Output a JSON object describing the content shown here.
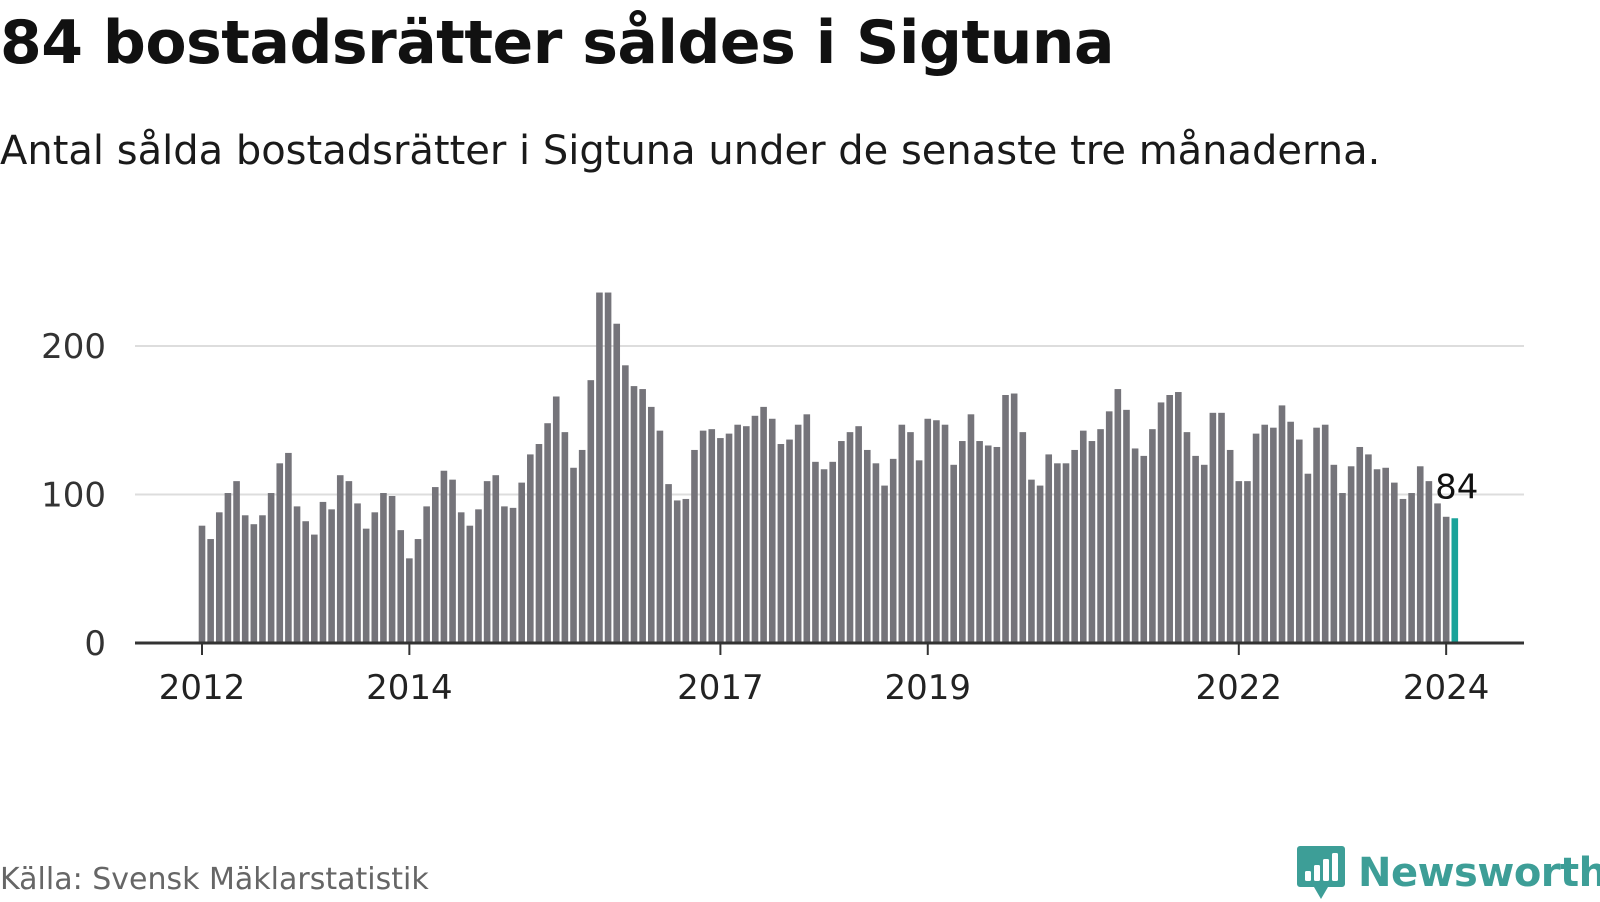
{
  "title": "84 bostadsrätter såldes i Sigtuna",
  "subtitle": "Antal sålda bostadsrätter i Sigtuna under de senaste tre månaderna.",
  "source": "Källa: Svensk Mäklarstatistik",
  "brand": {
    "name": "Newsworthy",
    "icon": "newsworthy-logo-icon"
  },
  "colors": {
    "bar": "#75747a",
    "highlight": "#1aa39a",
    "grid": "#dddddd",
    "axis": "#333333",
    "brand": "#3d9e97"
  },
  "chart_data": {
    "type": "bar",
    "title": "84 bostadsrätter såldes i Sigtuna",
    "xlabel": "",
    "ylabel": "",
    "ylim": [
      0,
      240
    ],
    "yticks": [
      0,
      100,
      200
    ],
    "grid": true,
    "start": {
      "year": 2012,
      "month": 1
    },
    "frequency": "monthly",
    "xtick_labels": [
      "2012",
      "2014",
      "2017",
      "2019",
      "2022",
      "2024"
    ],
    "highlight_label": "84",
    "values": [
      79,
      70,
      88,
      101,
      109,
      86,
      80,
      86,
      101,
      121,
      128,
      92,
      82,
      73,
      95,
      90,
      113,
      109,
      94,
      77,
      88,
      101,
      99,
      76,
      57,
      70,
      92,
      105,
      116,
      110,
      88,
      79,
      90,
      109,
      113,
      92,
      91,
      108,
      127,
      134,
      148,
      166,
      142,
      118,
      130,
      177,
      236,
      236,
      215,
      187,
      173,
      171,
      159,
      143,
      107,
      96,
      97,
      130,
      143,
      144,
      138,
      141,
      147,
      146,
      153,
      159,
      151,
      134,
      137,
      147,
      154,
      122,
      117,
      122,
      136,
      142,
      146,
      130,
      121,
      106,
      124,
      147,
      142,
      123,
      151,
      150,
      147,
      120,
      136,
      154,
      136,
      133,
      132,
      167,
      168,
      142,
      110,
      106,
      127,
      121,
      121,
      130,
      143,
      136,
      144,
      156,
      171,
      157,
      131,
      126,
      144,
      162,
      167,
      169,
      142,
      126,
      120,
      155,
      155,
      130,
      109,
      109,
      141,
      147,
      145,
      160,
      149,
      137,
      114,
      145,
      147,
      120,
      101,
      119,
      132,
      127,
      117,
      118,
      108,
      97,
      101,
      119,
      109,
      94,
      85,
      84
    ]
  }
}
